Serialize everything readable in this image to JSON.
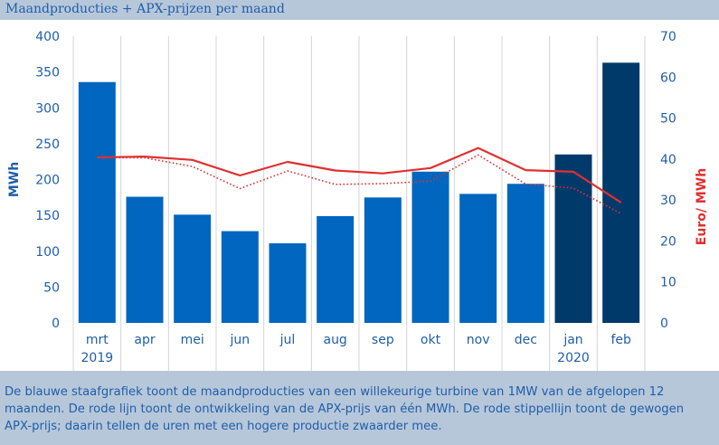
{
  "title": "Maandproducties + APX-prijzen per maand",
  "caption": "De blauwe staafgrafiek toont de maandproducties van een willekeurige turbine van 1MW van de afgelopen 12 maanden. De rode lijn toont de ontwikkeling van de APX-prijs van één MWh. De rode stippellijn toont de gewogen APX-prijs; daarin tellen de uren met een hogere productie zwaarder mee.",
  "chart_data": {
    "type": "bar",
    "categories": [
      "mrt",
      "apr",
      "mei",
      "jun",
      "jul",
      "aug",
      "sep",
      "okt",
      "nov",
      "dec",
      "jan",
      "feb"
    ],
    "year_labels": [
      "2019",
      "",
      "",
      "",
      "",
      "",
      "",
      "",
      "",
      "",
      "2020",
      ""
    ],
    "ylabel_left": "MWh",
    "ylabel_right": "Euro/ MWh",
    "ylim_left": [
      0,
      400
    ],
    "ylim_right": [
      0,
      70
    ],
    "yticks_left": [
      0,
      50,
      100,
      150,
      200,
      250,
      300,
      350,
      400
    ],
    "yticks_right": [
      0,
      10,
      20,
      30,
      40,
      50,
      60,
      70
    ],
    "grid": "vertical",
    "series": [
      {
        "type": "bar",
        "axis": "left",
        "values": [
          336,
          176,
          151,
          128,
          111,
          149,
          175,
          211,
          180,
          194,
          235,
          363
        ],
        "colors": [
          "#0066bf",
          "#0066bf",
          "#0066bf",
          "#0066bf",
          "#0066bf",
          "#0066bf",
          "#0066bf",
          "#0066bf",
          "#0066bf",
          "#0066bf",
          "#003a6b",
          "#003a6b"
        ]
      },
      {
        "type": "line",
        "axis": "right",
        "style": "solid",
        "color": "#e03030",
        "values": [
          40.4,
          40.6,
          39.8,
          36.0,
          39.3,
          37.2,
          36.5,
          37.8,
          42.7,
          37.3,
          36.9,
          29.4
        ]
      },
      {
        "type": "line",
        "axis": "right",
        "style": "dotted",
        "color": "#e03030",
        "values": [
          40.4,
          40.3,
          38.2,
          32.8,
          37.1,
          33.8,
          34.0,
          34.6,
          41.0,
          33.9,
          32.9,
          26.7
        ]
      }
    ]
  }
}
